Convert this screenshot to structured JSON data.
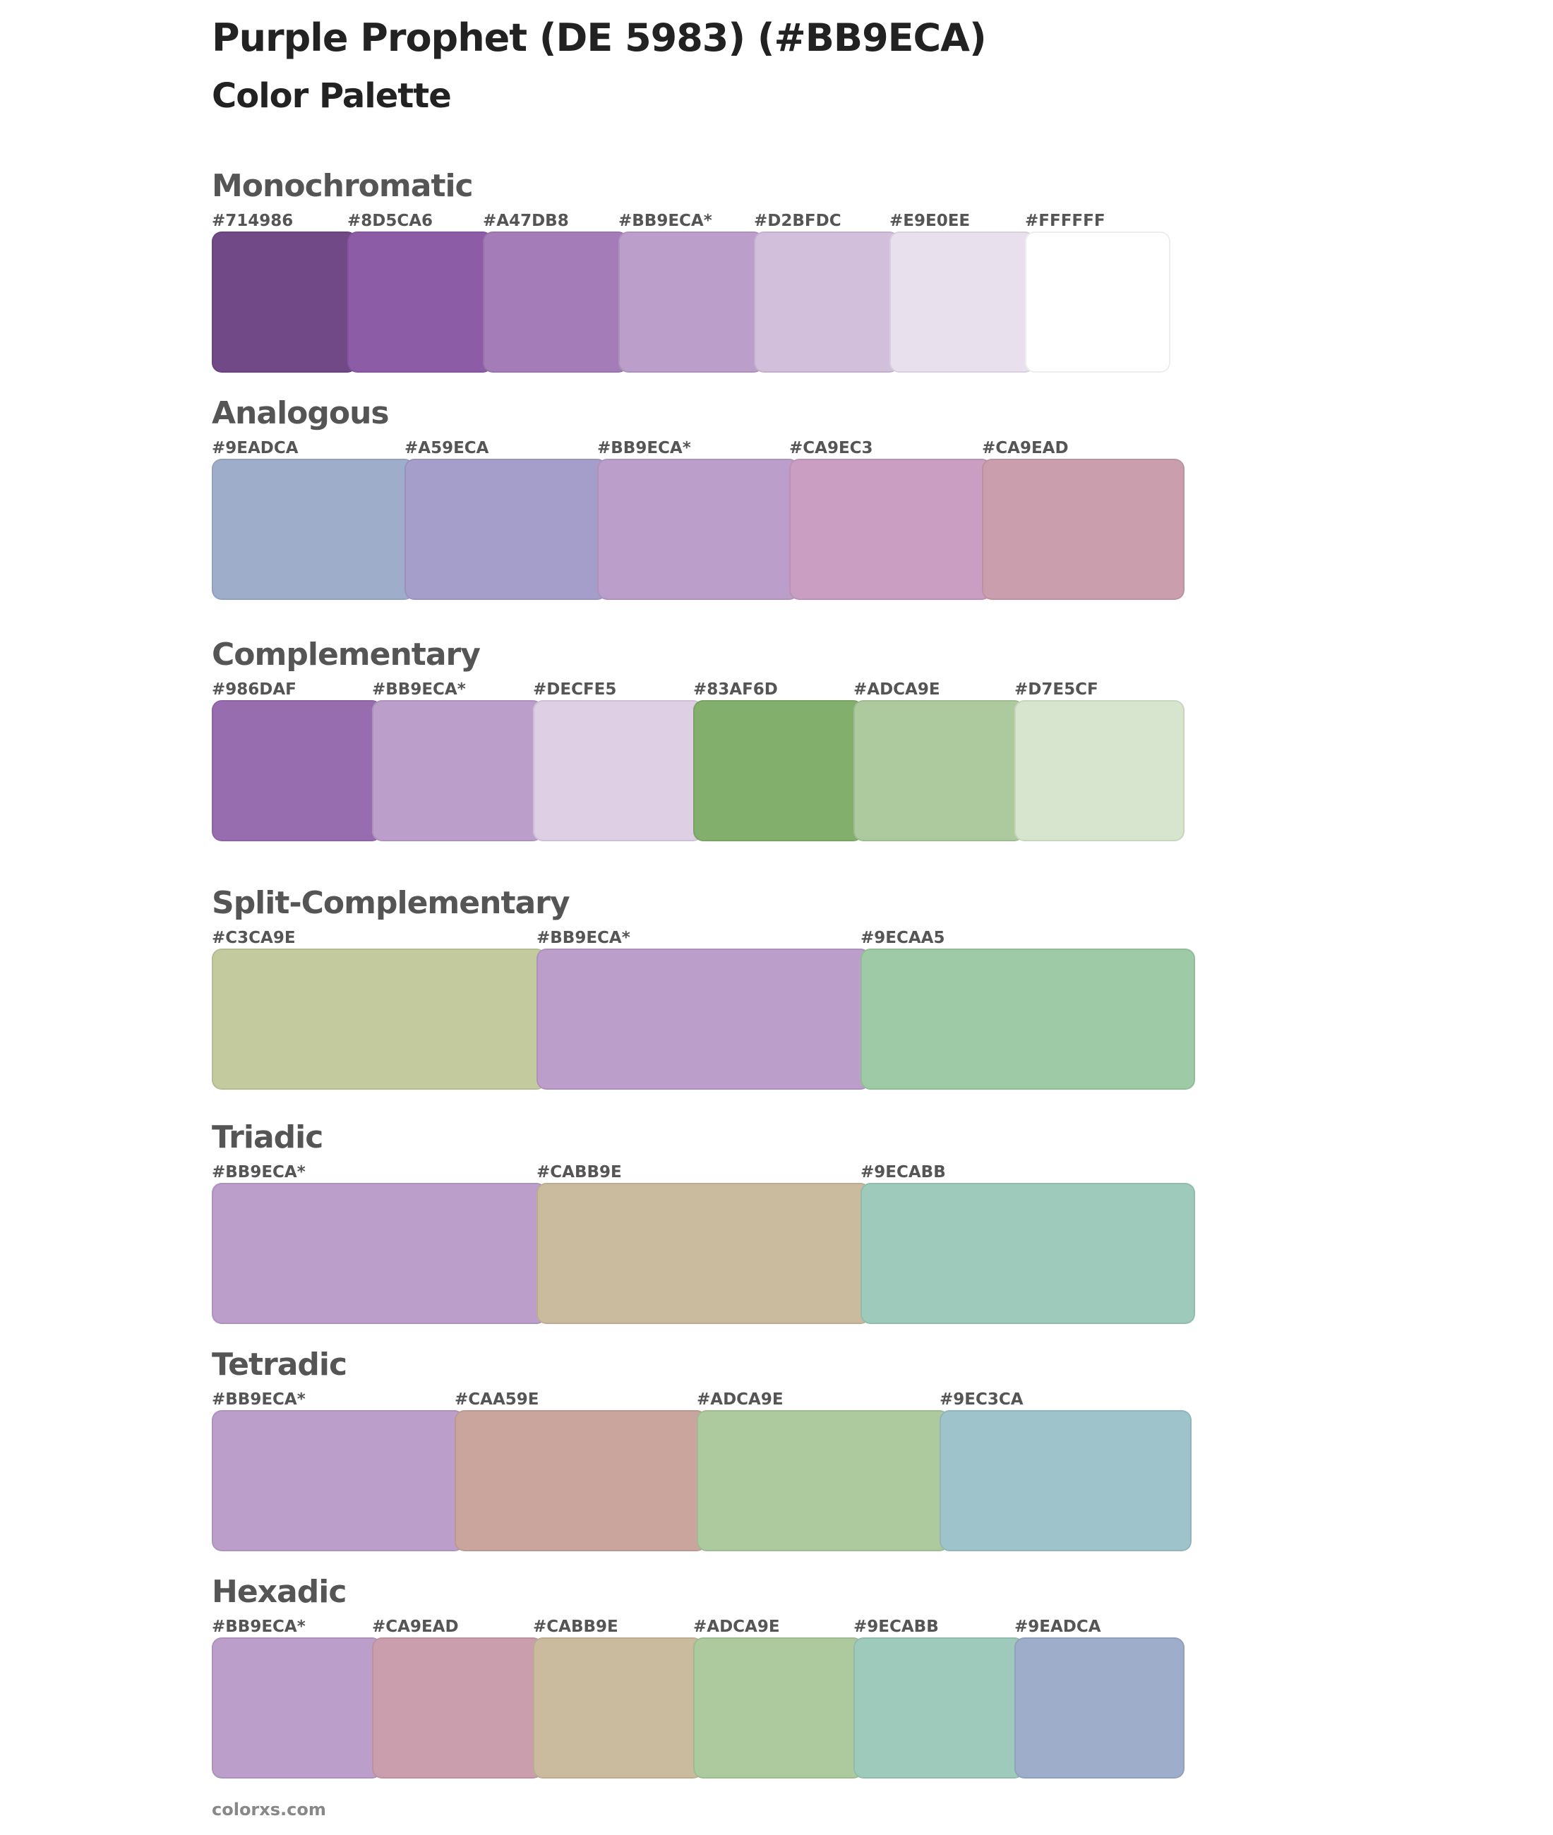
{
  "title": "Purple Prophet (DE 5983) (#BB9ECA)",
  "subtitle": "Color Palette",
  "footer": "colorxs.com",
  "sections": [
    {
      "id": "monochromatic",
      "name": "Monochromatic",
      "colors": [
        {
          "label": "#714986",
          "hex": "#714986"
        },
        {
          "label": "#8D5CA6",
          "hex": "#8D5CA6"
        },
        {
          "label": "#A47DB8",
          "hex": "#A47DB8"
        },
        {
          "label": "#BB9ECA*",
          "hex": "#BB9ECA"
        },
        {
          "label": "#D2BFDC",
          "hex": "#D2BFDC"
        },
        {
          "label": "#E9E0EE",
          "hex": "#E9E0EE"
        },
        {
          "label": "#FFFFFF",
          "hex": "#FFFFFF"
        }
      ]
    },
    {
      "id": "analogous",
      "name": "Analogous",
      "colors": [
        {
          "label": "#9EADCA",
          "hex": "#9EADCA"
        },
        {
          "label": "#A59ECA",
          "hex": "#A59ECA"
        },
        {
          "label": "#BB9ECA*",
          "hex": "#BB9ECA"
        },
        {
          "label": "#CA9EC3",
          "hex": "#CA9EC3"
        },
        {
          "label": "#CA9EAD",
          "hex": "#CA9EAD"
        }
      ]
    },
    {
      "id": "complementary",
      "name": "Complementary",
      "colors": [
        {
          "label": "#986DAF",
          "hex": "#986DAF"
        },
        {
          "label": "#BB9ECA*",
          "hex": "#BB9ECA"
        },
        {
          "label": "#DECFE5",
          "hex": "#DECFE5"
        },
        {
          "label": "#83AF6D",
          "hex": "#83AF6D"
        },
        {
          "label": "#ADCA9E",
          "hex": "#ADCA9E"
        },
        {
          "label": "#D7E5CF",
          "hex": "#D7E5CF"
        }
      ]
    },
    {
      "id": "split-complementary",
      "name": "Split-Complementary",
      "colors": [
        {
          "label": "#C3CA9E",
          "hex": "#C3CA9E"
        },
        {
          "label": "#BB9ECA*",
          "hex": "#BB9ECA"
        },
        {
          "label": "#9ECAA5",
          "hex": "#9ECAA5"
        }
      ]
    },
    {
      "id": "triadic",
      "name": "Triadic",
      "colors": [
        {
          "label": "#BB9ECA*",
          "hex": "#BB9ECA"
        },
        {
          "label": "#CABB9E",
          "hex": "#CABB9E"
        },
        {
          "label": "#9ECABB",
          "hex": "#9ECABB"
        }
      ]
    },
    {
      "id": "tetradic",
      "name": "Tetradic",
      "colors": [
        {
          "label": "#BB9ECA*",
          "hex": "#BB9ECA"
        },
        {
          "label": "#CAA59E",
          "hex": "#CAA59E"
        },
        {
          "label": "#ADCA9E",
          "hex": "#ADCA9E"
        },
        {
          "label": "#9EC3CA",
          "hex": "#9EC3CA"
        }
      ]
    },
    {
      "id": "hexadic",
      "name": "Hexadic",
      "colors": [
        {
          "label": "#BB9ECA*",
          "hex": "#BB9ECA"
        },
        {
          "label": "#CA9EAD",
          "hex": "#CA9EAD"
        },
        {
          "label": "#CABB9E",
          "hex": "#CABB9E"
        },
        {
          "label": "#ADCA9E",
          "hex": "#ADCA9E"
        },
        {
          "label": "#9ECABB",
          "hex": "#9ECABB"
        },
        {
          "label": "#9EADCA",
          "hex": "#9EADCA"
        }
      ]
    }
  ]
}
